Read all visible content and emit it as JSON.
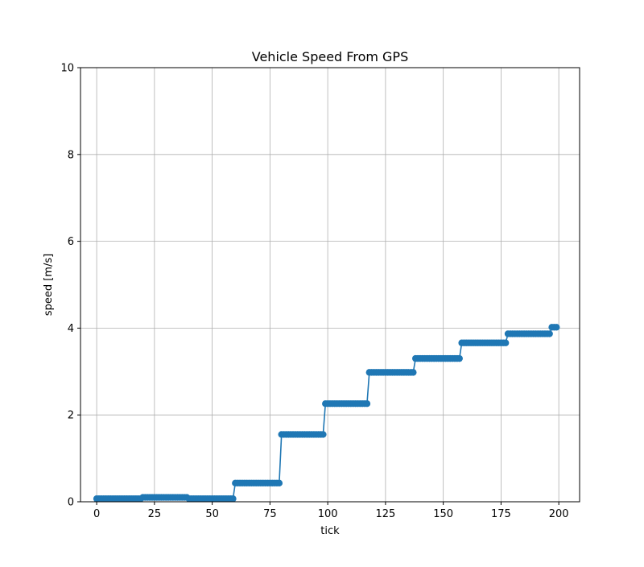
{
  "chart_data": {
    "type": "line",
    "title": "Vehicle Speed From GPS",
    "xlabel": "tick",
    "ylabel": "speed [m/s]",
    "xlim": [
      -7,
      209
    ],
    "ylim": [
      0,
      10
    ],
    "xticks": [
      0,
      25,
      50,
      75,
      100,
      125,
      150,
      175,
      200
    ],
    "yticks": [
      0,
      2,
      4,
      6,
      8,
      10
    ],
    "grid": true,
    "marker": "circle",
    "color": "#1f77b4",
    "segments": [
      {
        "x_start": 0,
        "x_end": 19,
        "y": 0.07
      },
      {
        "x_start": 20,
        "x_end": 39,
        "y": 0.1
      },
      {
        "x_start": 40,
        "x_end": 59,
        "y": 0.07
      },
      {
        "x_start": 60,
        "x_end": 79,
        "y": 0.43
      },
      {
        "x_start": 80,
        "x_end": 98,
        "y": 1.55
      },
      {
        "x_start": 99,
        "x_end": 117,
        "y": 2.26
      },
      {
        "x_start": 118,
        "x_end": 137,
        "y": 2.98
      },
      {
        "x_start": 138,
        "x_end": 157,
        "y": 3.3
      },
      {
        "x_start": 158,
        "x_end": 177,
        "y": 3.66
      },
      {
        "x_start": 178,
        "x_end": 196,
        "y": 3.87
      },
      {
        "x_start": 197,
        "x_end": 199,
        "y": 4.02
      }
    ]
  }
}
